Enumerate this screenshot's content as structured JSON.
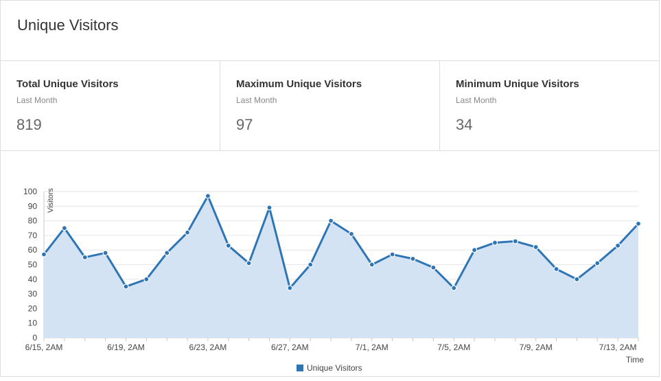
{
  "header": {
    "title": "Unique Visitors"
  },
  "stats": [
    {
      "label": "Total Unique Visitors",
      "period": "Last Month",
      "value": "819"
    },
    {
      "label": "Maximum Unique Visitors",
      "period": "Last Month",
      "value": "97"
    },
    {
      "label": "Minimum Unique Visitors",
      "period": "Last Month",
      "value": "34"
    }
  ],
  "colors": {
    "line": "#2e75b6",
    "fill": "#d3e3f3",
    "grid": "#e6e6e6"
  },
  "chart_data": {
    "type": "area",
    "title": "",
    "xlabel": "Time",
    "ylabel": "Visitors",
    "ylim": [
      0,
      100
    ],
    "yticks": [
      0,
      10,
      20,
      30,
      40,
      50,
      60,
      70,
      80,
      90,
      100
    ],
    "x": [
      "6/15",
      "6/16",
      "6/17",
      "6/18",
      "6/19",
      "6/20",
      "6/21",
      "6/22",
      "6/23",
      "6/24",
      "6/25",
      "6/26",
      "6/27",
      "6/28",
      "6/29",
      "6/30",
      "7/1",
      "7/2",
      "7/3",
      "7/4",
      "7/5",
      "7/6",
      "7/7",
      "7/8",
      "7/9",
      "7/10",
      "7/11",
      "7/12",
      "7/13",
      "7/14"
    ],
    "x_tick_labels": [
      "6/15, 2AM",
      "6/19, 2AM",
      "6/23, 2AM",
      "6/27, 2AM",
      "7/1, 2AM",
      "7/5, 2AM",
      "7/9, 2AM",
      "7/13, 2AM"
    ],
    "x_tick_index": [
      0,
      4,
      8,
      12,
      16,
      20,
      24,
      28
    ],
    "series": [
      {
        "name": "Unique Visitors",
        "values": [
          57,
          75,
          55,
          58,
          35,
          40,
          58,
          72,
          97,
          63,
          51,
          89,
          34,
          50,
          80,
          71,
          50,
          57,
          54,
          48,
          34,
          60,
          65,
          66,
          62,
          47,
          40,
          51,
          63,
          78
        ]
      }
    ],
    "legend": "bottom-center",
    "grid": true
  }
}
